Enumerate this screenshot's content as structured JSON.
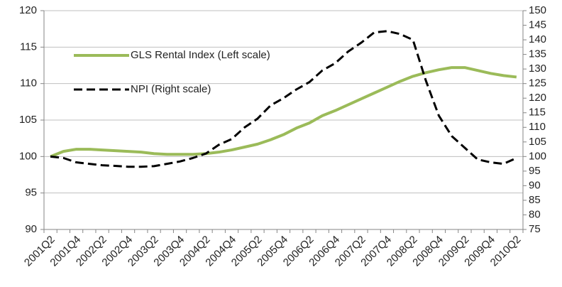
{
  "chart_data": {
    "type": "line",
    "categories": [
      "2001Q2",
      null,
      "2001Q4",
      null,
      "2002Q2",
      null,
      "2002Q4",
      null,
      "2003Q2",
      null,
      "2003Q4",
      null,
      "2004Q2",
      null,
      "2004Q4",
      null,
      "2005Q2",
      null,
      "2005Q4",
      null,
      "2006Q2",
      null,
      "2006Q4",
      null,
      "2007Q2",
      null,
      "2007Q4",
      null,
      "2008Q2",
      null,
      "2008Q4",
      null,
      "2009Q2",
      null,
      "2009Q4",
      null,
      "2010Q2"
    ],
    "series": [
      {
        "name": "GLS Rental Index (Left scale)",
        "color": "#9bbb59",
        "axis": "y",
        "values": [
          100,
          100.7,
          101,
          101,
          100.9,
          100.8,
          100.7,
          100.6,
          100.4,
          100.3,
          100.3,
          100.3,
          100.4,
          100.6,
          100.9,
          101.3,
          101.7,
          102.3,
          103,
          103.9,
          104.6,
          105.6,
          106.3,
          107.1,
          107.9,
          108.7,
          109.5,
          110.3,
          111,
          111.5,
          111.9,
          112.2,
          112.2,
          111.8,
          111.4,
          111.1,
          110.9
        ]
      },
      {
        "name": "NPI (Right scale)",
        "color": "#000000",
        "axis": "y2",
        "values": [
          100,
          99.5,
          98,
          97.5,
          97,
          96.8,
          96.5,
          96.5,
          96.7,
          97.5,
          98.3,
          99.5,
          101,
          104,
          106,
          110,
          113,
          117.5,
          120,
          123,
          125.5,
          129.5,
          132,
          136,
          139,
          142.5,
          143,
          142,
          140,
          126,
          114,
          107,
          103,
          99,
          98,
          97.5,
          99.5
        ]
      }
    ],
    "ylim": [
      90,
      120
    ],
    "yticks": [
      90,
      95,
      100,
      105,
      110,
      115,
      120
    ],
    "y2lim": [
      75,
      150
    ],
    "y2ticks": [
      75,
      80,
      85,
      90,
      95,
      100,
      105,
      110,
      115,
      120,
      125,
      130,
      135,
      140,
      145,
      150
    ],
    "grid": true,
    "legend": "upper-left"
  }
}
